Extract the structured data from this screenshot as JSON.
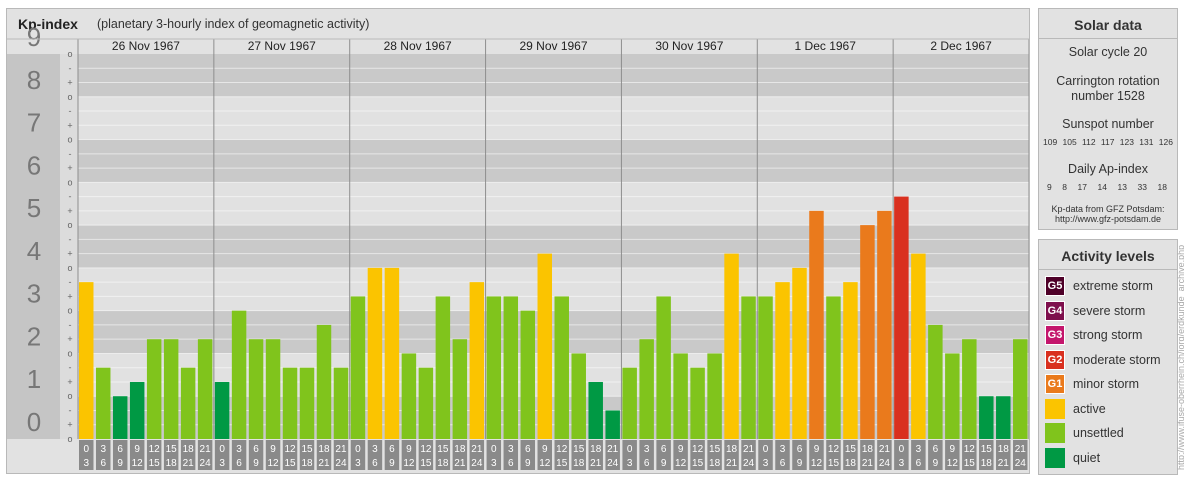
{
  "header": {
    "title": "Kp-index",
    "subtitle": "(planetary 3-hourly index of geomagnetic activity)"
  },
  "colors": {
    "quiet": "#009944",
    "unsettled": "#80c41c",
    "active": "#fbc400",
    "minor": "#ea7a1c",
    "moderate": "#d9301f",
    "strong": "#c4166c",
    "severe": "#7e0f4d",
    "extreme": "#4e0028"
  },
  "chart_data": {
    "type": "bar",
    "ylim": [
      0,
      9
    ],
    "yticks": [
      "0",
      "1",
      "2",
      "3",
      "4",
      "5",
      "6",
      "7",
      "8",
      "9"
    ],
    "subticks": [
      "-",
      "o",
      "+"
    ],
    "days": [
      "26 Nov 1967",
      "27 Nov 1967",
      "28 Nov 1967",
      "29 Nov 1967",
      "30 Nov 1967",
      "1 Dec 1967",
      "2 Dec 1967"
    ],
    "interval_labels": [
      [
        "0",
        "3"
      ],
      [
        "3",
        "6"
      ],
      [
        "6",
        "9"
      ],
      [
        "9",
        "12"
      ],
      [
        "12",
        "15"
      ],
      [
        "15",
        "18"
      ],
      [
        "18",
        "21"
      ],
      [
        "21",
        "24"
      ]
    ],
    "values": [
      [
        3.667,
        1.667,
        1.0,
        1.333,
        2.333,
        2.333,
        1.667,
        2.333
      ],
      [
        1.333,
        3.0,
        2.333,
        2.333,
        1.667,
        1.667,
        2.667,
        1.667
      ],
      [
        3.333,
        4.0,
        4.0,
        2.0,
        1.667,
        3.333,
        2.333,
        3.667
      ],
      [
        3.333,
        3.333,
        3.0,
        4.333,
        3.333,
        2.0,
        1.333,
        0.667
      ],
      [
        1.667,
        2.333,
        3.333,
        2.0,
        1.667,
        2.0,
        4.333,
        3.333
      ],
      [
        3.333,
        3.667,
        4.0,
        5.333,
        3.333,
        3.667,
        5.0,
        5.333
      ],
      [
        5.667,
        4.333,
        2.667,
        2.0,
        2.333,
        1.0,
        1.0,
        2.333
      ]
    ]
  },
  "solar": {
    "title": "Solar data",
    "cycle": "Solar cycle 20",
    "carrington_line1": "Carrington rotation",
    "carrington_line2": "number 1528",
    "sunspot_title": "Sunspot number",
    "sunspot_values": [
      "109",
      "105",
      "112",
      "117",
      "123",
      "131",
      "126"
    ],
    "ap_title": "Daily Ap-index",
    "ap_values": [
      "9",
      "8",
      "17",
      "14",
      "13",
      "33",
      "18"
    ],
    "source_line1": "Kp-data from GFZ Potsdam:",
    "source_line2": "http://www.gfz-potsdam.de"
  },
  "activity": {
    "title": "Activity levels",
    "levels": [
      {
        "code": "G5",
        "label": "extreme storm",
        "color": "#4e0028"
      },
      {
        "code": "G4",
        "label": "severe storm",
        "color": "#7e0f4d"
      },
      {
        "code": "G3",
        "label": "strong storm",
        "color": "#c4166c"
      },
      {
        "code": "G2",
        "label": "moderate storm",
        "color": "#d9301f"
      },
      {
        "code": "G1",
        "label": "minor storm",
        "color": "#ea7a1c"
      },
      {
        "code": "",
        "label": "active",
        "color": "#fbc400"
      },
      {
        "code": "",
        "label": "unsettled",
        "color": "#80c41c"
      },
      {
        "code": "",
        "label": "quiet",
        "color": "#009944"
      }
    ]
  },
  "watermark": "http://www.ifuse-oberrhein.ch/jorg/erdkunde_archive.php"
}
